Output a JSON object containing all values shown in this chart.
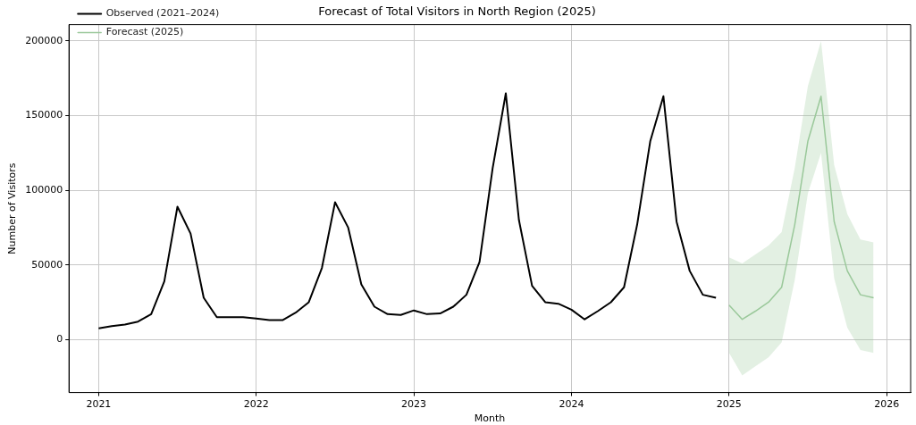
{
  "chart_data": {
    "type": "line",
    "title": "Forecast of Total Visitors in North Region (2025)",
    "xlabel": "Month",
    "ylabel": "Number of Visitors",
    "xlim": [
      "2020-10-24",
      "2026-02-24"
    ],
    "xticks": [
      "2021",
      "2022",
      "2023",
      "2024",
      "2025",
      "2026"
    ],
    "ylim": [
      -35500,
      211000
    ],
    "yticks": [
      0,
      50000,
      100000,
      150000,
      200000
    ],
    "grid": true,
    "legend": "top left",
    "marker": "none",
    "series": [
      {
        "name": "Observed (2021–2024)",
        "color": "#000000",
        "x": [
          "2021-01",
          "2021-02",
          "2021-03",
          "2021-04",
          "2021-05",
          "2021-06",
          "2021-07",
          "2021-08",
          "2021-09",
          "2021-10",
          "2021-11",
          "2021-12",
          "2022-01",
          "2022-02",
          "2022-03",
          "2022-04",
          "2022-05",
          "2022-06",
          "2022-07",
          "2022-08",
          "2022-09",
          "2022-10",
          "2022-11",
          "2022-12",
          "2023-01",
          "2023-02",
          "2023-03",
          "2023-04",
          "2023-05",
          "2023-06",
          "2023-07",
          "2023-08",
          "2023-09",
          "2023-10",
          "2023-11",
          "2023-12",
          "2024-01",
          "2024-02",
          "2024-03",
          "2024-04",
          "2024-05",
          "2024-06",
          "2024-07",
          "2024-08",
          "2024-09",
          "2024-10",
          "2024-11",
          "2024-12"
        ],
        "values": [
          7500,
          9000,
          10000,
          12000,
          17000,
          39000,
          89000,
          71000,
          28000,
          15000,
          15000,
          15000,
          14000,
          13000,
          13000,
          18000,
          25000,
          48000,
          92000,
          75000,
          37000,
          22000,
          17000,
          16500,
          19500,
          17000,
          17500,
          22000,
          30000,
          52000,
          115000,
          165000,
          80000,
          36000,
          25000,
          24000,
          20000,
          13500,
          19000,
          25000,
          35000,
          77000,
          133000,
          163000,
          79000,
          46000,
          30000,
          28000
        ]
      },
      {
        "name": "Forecast (2025)",
        "color": "#9ac89a",
        "x": [
          "2025-01",
          "2025-02",
          "2025-03",
          "2025-04",
          "2025-05",
          "2025-06",
          "2025-07",
          "2025-08",
          "2025-09",
          "2025-10",
          "2025-11",
          "2025-12"
        ],
        "values": [
          23000,
          13500,
          19000,
          25000,
          35000,
          77000,
          133000,
          163000,
          79000,
          46000,
          30000,
          28000
        ],
        "lower": [
          -9000,
          -24000,
          -18000,
          -12000,
          -2000,
          40000,
          98000,
          125000,
          41000,
          8000,
          -7000,
          -9000
        ],
        "upper": [
          55000,
          51000,
          57000,
          63000,
          72000,
          115000,
          170000,
          200000,
          117000,
          84000,
          67000,
          65000
        ]
      }
    ]
  }
}
